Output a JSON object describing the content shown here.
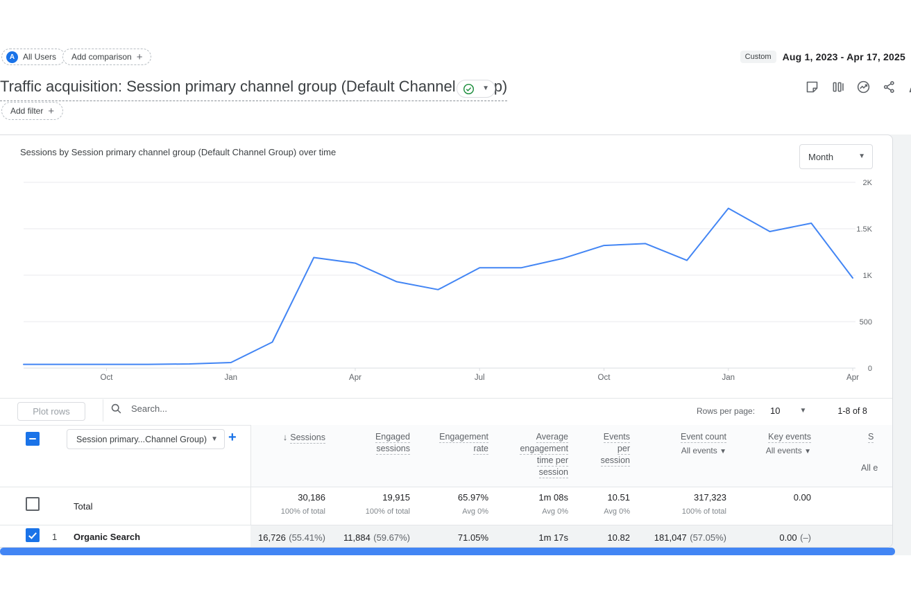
{
  "toolbar": {
    "all_users_avatar": "A",
    "all_users_chip": "All Users",
    "add_comparison_label": "Add comparison",
    "date_mode": "Custom",
    "date_range": "Aug 1, 2023 - Apr 17, 2025"
  },
  "title_bar": {
    "title": "Traffic acquisition: Session primary channel group (Default Channel Group)",
    "icons": [
      "notes-icon",
      "chart-cards-icon",
      "insights-icon",
      "share-icon",
      "edit-icon"
    ]
  },
  "filter_bar": {
    "add_filter_label": "Add filter"
  },
  "chart_card": {
    "title": "Sessions by Session primary channel group (Default Channel Group) over time",
    "granularity_selector": "Month"
  },
  "chart_data": {
    "type": "line",
    "title": "Sessions by Session primary channel group (Default Channel Group) over time",
    "x": [
      "Aug 2023",
      "Sep 2023",
      "Oct 2023",
      "Nov 2023",
      "Dec 2023",
      "Jan 2024",
      "Feb 2024",
      "Mar 2024",
      "Apr 2024",
      "May 2024",
      "Jun 2024",
      "Jul 2024",
      "Aug 2024",
      "Sep 2024",
      "Oct 2024",
      "Nov 2024",
      "Dec 2024",
      "Jan 2025",
      "Feb 2025",
      "Mar 2025",
      "Apr 2025"
    ],
    "x_tick_indices": [
      2,
      5,
      8,
      11,
      14,
      17,
      20
    ],
    "x_tick_labels": [
      "Oct",
      "Jan",
      "Apr",
      "Jul",
      "Oct",
      "Jan",
      "Apr"
    ],
    "series": [
      {
        "name": "Organic Search",
        "color": "#4285f4",
        "values": [
          40,
          40,
          40,
          40,
          45,
          60,
          280,
          1190,
          1130,
          930,
          845,
          1080,
          1080,
          1180,
          1320,
          1340,
          1160,
          1720,
          1470,
          1560,
          970
        ]
      }
    ],
    "ylim": [
      0,
      2000
    ],
    "y_ticks": [
      0,
      500,
      1000,
      1500,
      2000
    ],
    "y_tick_labels": [
      "0",
      "500",
      "1K",
      "1.5K",
      "2K"
    ],
    "grid": true,
    "legend": false
  },
  "table": {
    "plot_rows_label": "Plot rows",
    "search_placeholder": "Search...",
    "rows_per_page_label": "Rows per page:",
    "rows_per_page_value": "10",
    "pagination": "1-8 of 8",
    "dimension_selector": "Session primary...Channel Group)",
    "header_checkbox_state": "indeterminate",
    "columns": [
      {
        "lines": [
          "Sessions"
        ],
        "sorted": "descending"
      },
      {
        "lines": [
          "Engaged",
          "sessions"
        ]
      },
      {
        "lines": [
          "Engagement",
          "rate"
        ]
      },
      {
        "lines": [
          "Average",
          "engagement",
          "time per",
          "session"
        ]
      },
      {
        "lines": [
          "Events",
          "per",
          "session"
        ]
      },
      {
        "lines": [
          "Event count"
        ],
        "filter": "All events"
      },
      {
        "lines": [
          "Key events"
        ],
        "filter": "All events"
      },
      {
        "lines": [
          "S"
        ],
        "filter": "All e"
      }
    ],
    "total_row": {
      "label": "Total",
      "checkbox": "unchecked",
      "values": [
        {
          "main": "30,186",
          "sub": "100% of total"
        },
        {
          "main": "19,915",
          "sub": "100% of total"
        },
        {
          "main": "65.97%",
          "sub": "Avg 0%"
        },
        {
          "main": "1m 08s",
          "sub": "Avg 0%"
        },
        {
          "main": "10.51",
          "sub": "Avg 0%"
        },
        {
          "main": "317,323",
          "sub": "100% of total"
        },
        {
          "main": "0.00",
          "sub": ""
        }
      ]
    },
    "rows": [
      {
        "index": "1",
        "name": "Organic Search",
        "checkbox": "checked",
        "values": [
          {
            "num": "16,726",
            "paren": "(55.41%)"
          },
          {
            "num": "11,884",
            "paren": "(59.67%)"
          },
          {
            "num": "71.05%",
            "paren": ""
          },
          {
            "num": "1m 17s",
            "paren": ""
          },
          {
            "num": "10.82",
            "paren": ""
          },
          {
            "num": "181,047",
            "paren": "(57.05%)"
          },
          {
            "num": "0.00",
            "paren": "(–)"
          }
        ]
      }
    ]
  }
}
